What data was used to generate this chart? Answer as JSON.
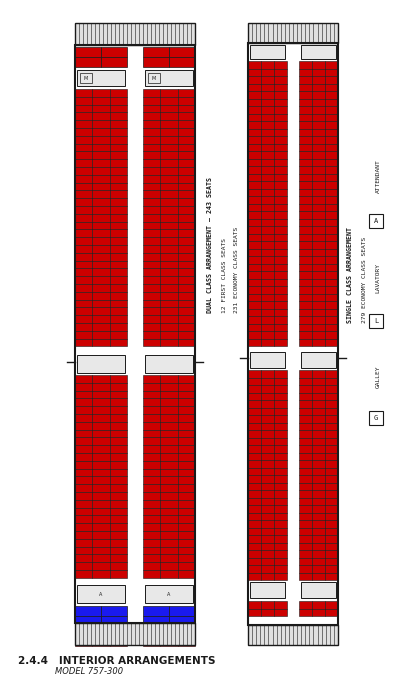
{
  "title": "2.4.4   INTERIOR ARRANGEMENTS",
  "subtitle": "MODEL 757-300",
  "bg": "#ffffff",
  "red": "#cc0000",
  "blue": "#1a1aee",
  "black": "#1a1a1a",
  "gray": "#cccccc",
  "darkgray": "#888888",
  "left_label1": "DUAL CLASS ARRANGEMENT – 243 SEATS",
  "left_label2": "12 FIRST CLASS SEATS",
  "left_label3": "231 ECONOMY CLASS SEATS",
  "right_label1": "SINGLE CLASS ARRANGEMENT",
  "right_label2": "279 ECONOMY CLASS SEATS"
}
